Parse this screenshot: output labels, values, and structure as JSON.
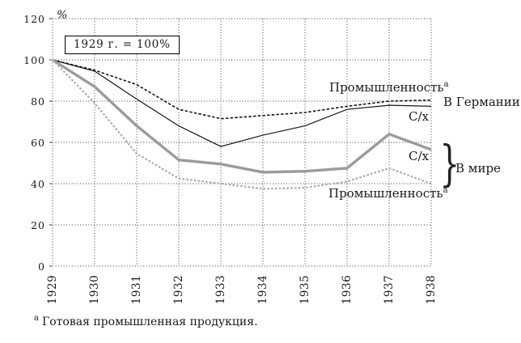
{
  "chart_data": {
    "type": "line",
    "x_categories": [
      "1929",
      "1930",
      "1931",
      "1932",
      "1933",
      "1934",
      "1935",
      "1936",
      "1937",
      "1938"
    ],
    "ylim": [
      0,
      120
    ],
    "yticks": [
      0,
      20,
      40,
      60,
      80,
      100,
      120
    ],
    "ylabel": "%",
    "grid": true,
    "legend_position": "inline-annotations",
    "reference_note": "1929 г. = 100%",
    "series": [
      {
        "name": "В Германии — Промышленность",
        "group": "В Германии",
        "label": {
          "text": "Промышленность",
          "sup": "a"
        },
        "style": "black-dashed",
        "values": [
          100,
          95,
          88,
          76,
          71.5,
          73,
          74.5,
          77.5,
          80,
          80.5
        ]
      },
      {
        "name": "В Германии — С/х",
        "group": "В Германии",
        "label": {
          "text": "С/х"
        },
        "style": "black-solid",
        "values": [
          100,
          94.5,
          81,
          68,
          58,
          63.5,
          68,
          76,
          78,
          77.5
        ]
      },
      {
        "name": "В мире — С/х",
        "group": "В мире",
        "label": {
          "text": "С/х"
        },
        "style": "gray-thick",
        "values": [
          100,
          87,
          68,
          51.5,
          49.5,
          45.5,
          46,
          47.5,
          64,
          56.5
        ]
      },
      {
        "name": "В мире — Промышленность",
        "group": "В мире",
        "label": {
          "text": "Промышленность",
          "sup": "a"
        },
        "style": "gray-dotted",
        "values": [
          100,
          79,
          54.5,
          42.5,
          40,
          37.5,
          38,
          41,
          47.5,
          40
        ]
      }
    ],
    "group_labels": {
      "germany": "В Германии",
      "world": "В мире"
    },
    "brace_glyph": "}",
    "footnote": {
      "marker": "a",
      "text": "Готовая промышленная продукция."
    }
  }
}
